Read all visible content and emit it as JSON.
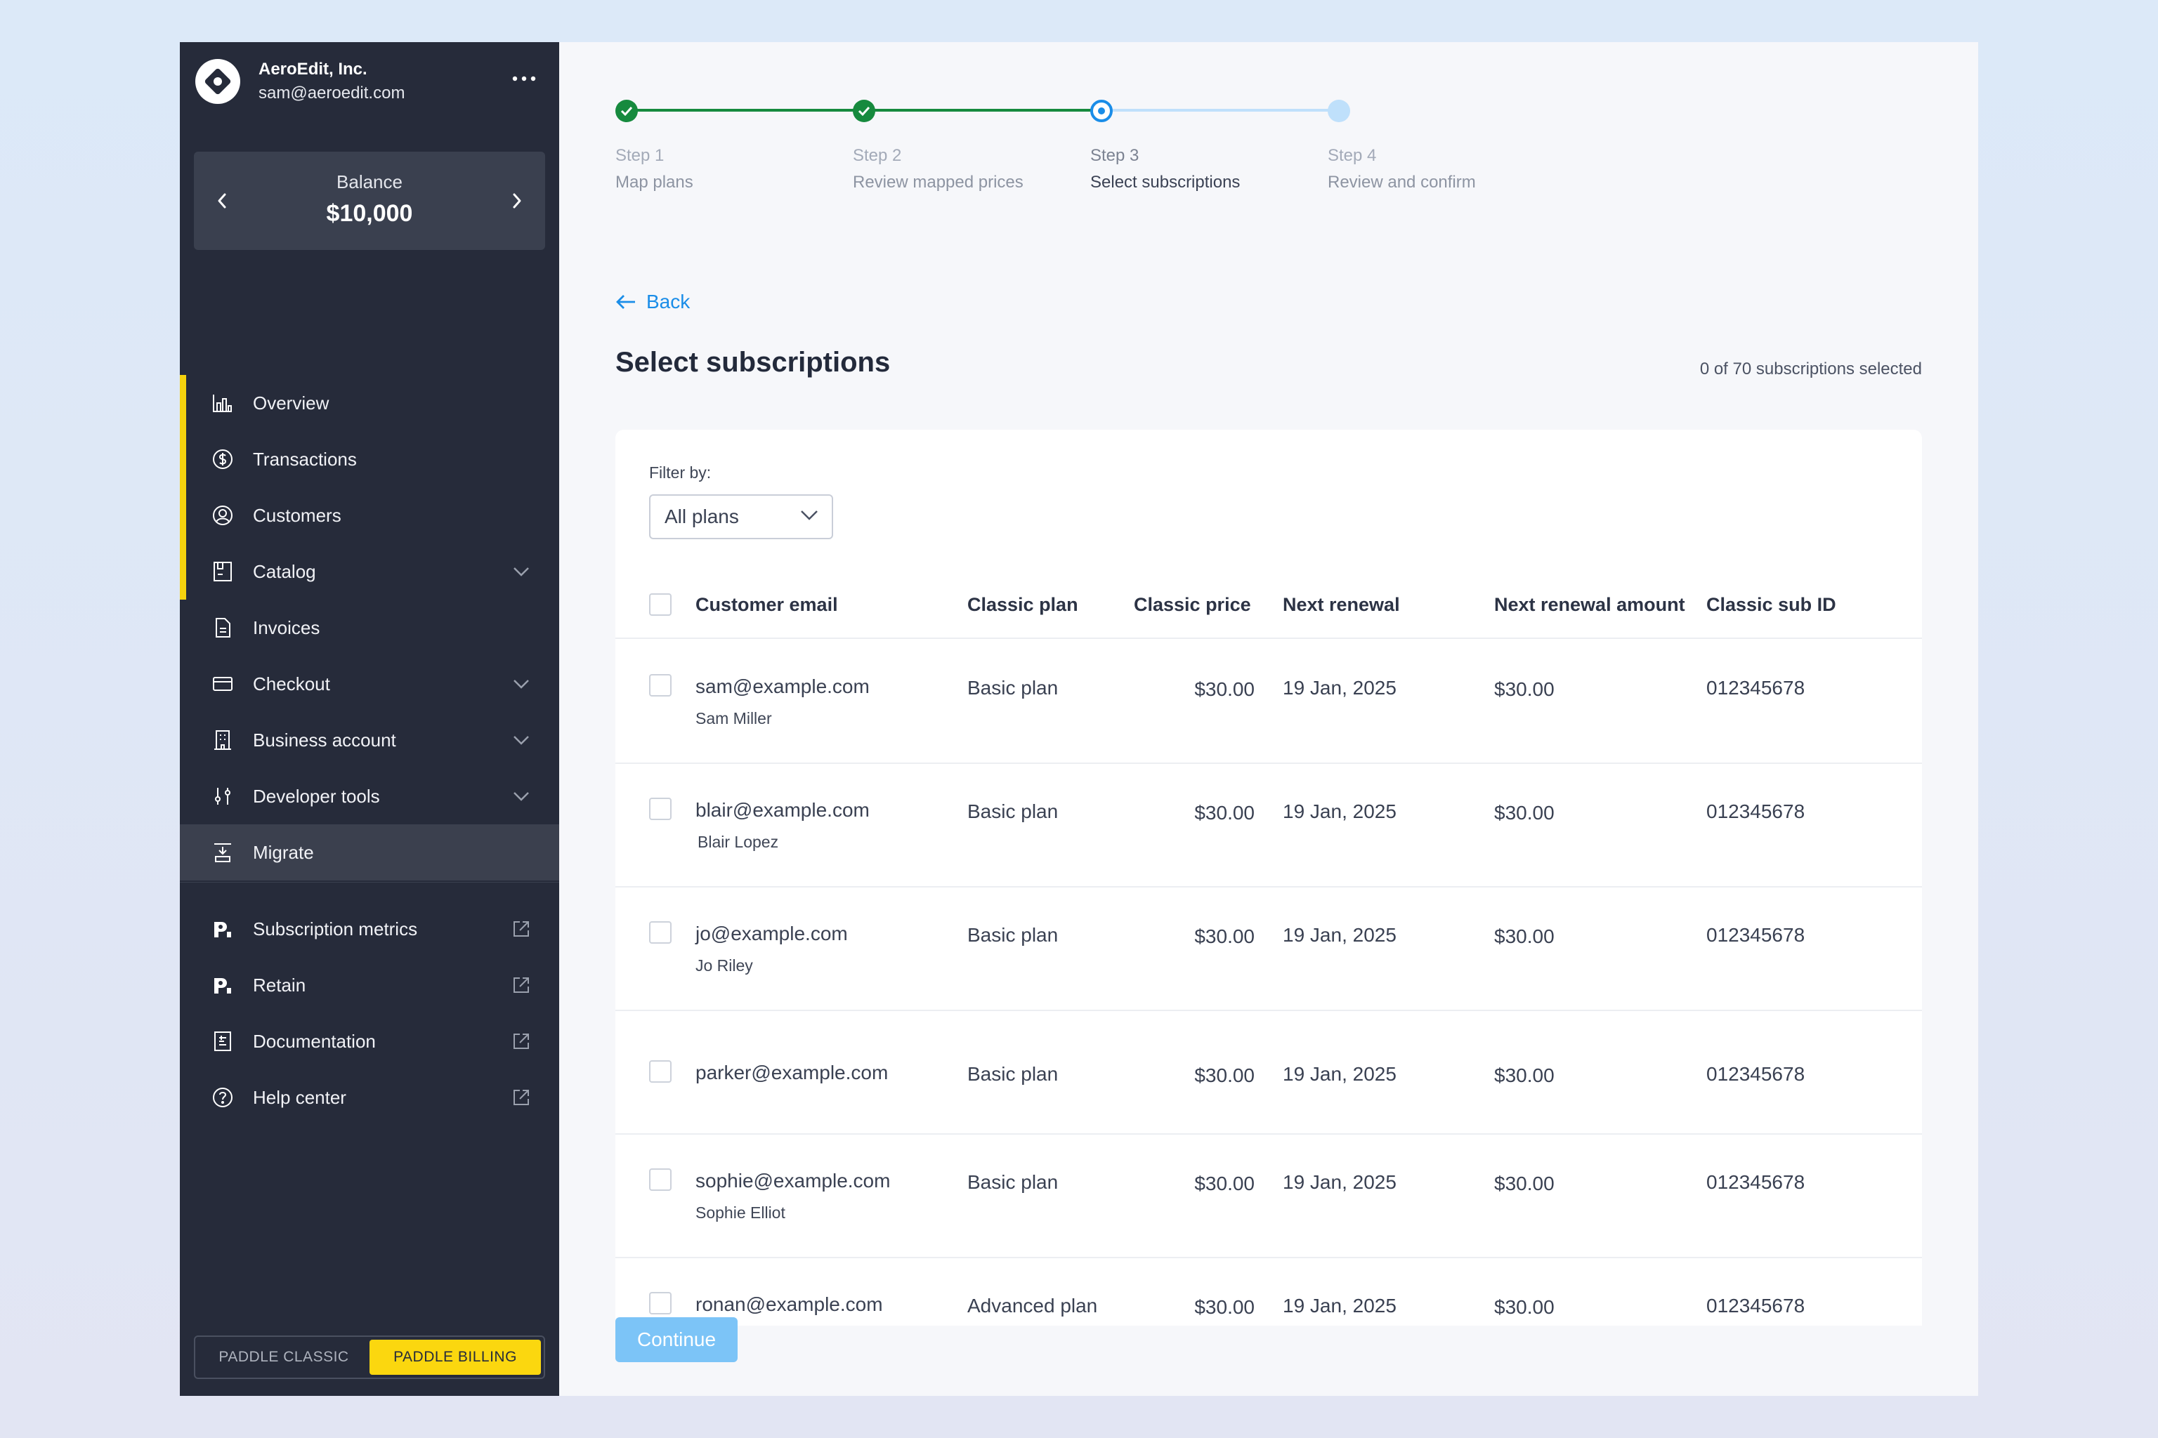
{
  "account": {
    "name": "AeroEdit, Inc.",
    "email": "sam@aeroedit.com"
  },
  "balance": {
    "label": "Balance",
    "value": "$10,000"
  },
  "nav": [
    {
      "label": "Overview",
      "icon": "bar-chart-icon"
    },
    {
      "label": "Transactions",
      "icon": "dollar-circle-icon"
    },
    {
      "label": "Customers",
      "icon": "user-circle-icon"
    },
    {
      "label": "Catalog",
      "icon": "catalog-icon",
      "expandable": true
    },
    {
      "label": "Invoices",
      "icon": "document-icon"
    },
    {
      "label": "Checkout",
      "icon": "credit-card-icon",
      "expandable": true
    },
    {
      "label": "Business account",
      "icon": "building-icon",
      "expandable": true
    },
    {
      "label": "Developer tools",
      "icon": "sliders-icon",
      "expandable": true
    },
    {
      "label": "Migrate",
      "icon": "migrate-icon",
      "active": true
    }
  ],
  "external_nav": [
    {
      "label": "Subscription metrics",
      "icon": "profitwell-icon"
    },
    {
      "label": "Retain",
      "icon": "profitwell-icon"
    },
    {
      "label": "Documentation",
      "icon": "docs-icon"
    },
    {
      "label": "Help center",
      "icon": "help-circle-icon"
    }
  ],
  "product_toggle": {
    "classic": "PADDLE CLASSIC",
    "billing": "PADDLE BILLING",
    "selected": "PADDLE BILLING"
  },
  "steps": [
    {
      "num": "Step 1",
      "name": "Map plans",
      "state": "done"
    },
    {
      "num": "Step 2",
      "name": "Review mapped prices",
      "state": "done"
    },
    {
      "num": "Step 3",
      "name": "Select subscriptions",
      "state": "current"
    },
    {
      "num": "Step 4",
      "name": "Review and confirm",
      "state": "todo"
    }
  ],
  "back_label": "Back",
  "page_title": "Select subscriptions",
  "selection_count": "0 of 70 subscriptions selected",
  "filter": {
    "label": "Filter by:",
    "value": "All plans"
  },
  "table": {
    "columns": [
      "Customer email",
      "Classic plan",
      "Classic price",
      "Next renewal",
      "Next renewal amount",
      "Classic sub ID"
    ],
    "rows": [
      {
        "email": "sam@example.com",
        "name": "Sam Miller",
        "plan": "Basic plan",
        "price": "$30.00",
        "renewal": "19 Jan, 2025",
        "amount": "$30.00",
        "sub_id": "012345678"
      },
      {
        "email": "blair@example.com",
        "name": "Blair Lopez",
        "plan": "Basic plan",
        "price": "$30.00",
        "renewal": "19 Jan, 2025",
        "amount": "$30.00",
        "sub_id": "012345678"
      },
      {
        "email": "jo@example.com",
        "name": "Jo Riley",
        "plan": "Basic plan",
        "price": "$30.00",
        "renewal": "19 Jan, 2025",
        "amount": "$30.00",
        "sub_id": "012345678"
      },
      {
        "email": "parker@example.com",
        "name": "",
        "plan": "Basic plan",
        "price": "$30.00",
        "renewal": "19 Jan, 2025",
        "amount": "$30.00",
        "sub_id": "012345678"
      },
      {
        "email": "sophie@example.com",
        "name": "Sophie Elliot",
        "plan": "Basic plan",
        "price": "$30.00",
        "renewal": "19 Jan, 2025",
        "amount": "$30.00",
        "sub_id": "012345678"
      },
      {
        "email": "ronan@example.com",
        "name": "",
        "plan": "Advanced plan",
        "price": "$30.00",
        "renewal": "19 Jan, 2025",
        "amount": "$30.00",
        "sub_id": "012345678"
      }
    ]
  },
  "continue_label": "Continue",
  "colors": {
    "sidebar": "#262b3a",
    "accent": "#1a8de8",
    "success": "#168a3e",
    "highlight": "#fbd70f"
  }
}
